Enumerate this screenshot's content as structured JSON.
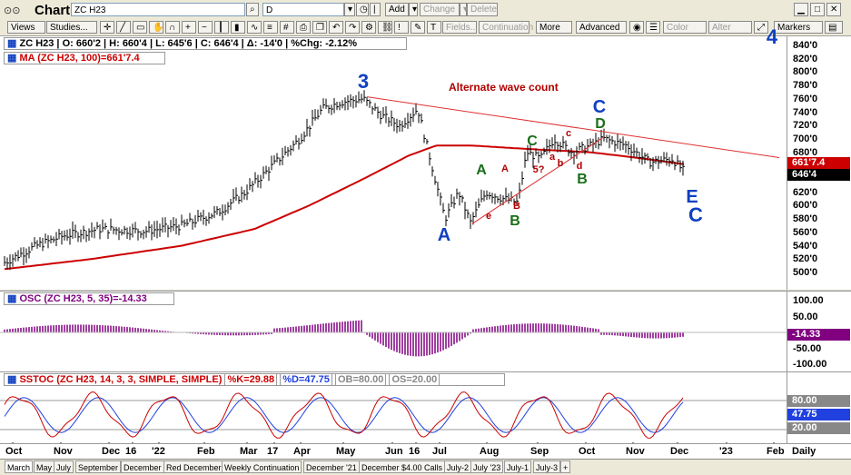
{
  "app": {
    "title": "Chart"
  },
  "titlebar": {
    "symbol_input": "ZC H23",
    "period_input": "D",
    "add_label": "Add",
    "change_label": "Change",
    "delete_label": "Delete"
  },
  "toolbar": {
    "views_label": "Views",
    "studies_label": "Studies...",
    "fields_label": "Fields...",
    "continuation_label": "Continuation",
    "more_label": "More",
    "advanced_label": "Advanced",
    "color_label": "Color",
    "alter_label": "Alter",
    "markers_label": "Markers"
  },
  "price_panel": {
    "symbol": "ZC H23",
    "open": "O: 660'2",
    "high": "H: 660'4",
    "low": "L: 645'6",
    "close": "C: 646'4",
    "delta": "Δ: -14'0",
    "pct": "%Chg: -2.12%",
    "ma_label": "MA (ZC H23, 100)=661'7.4",
    "annotation": "Alternate wave count",
    "y_ticks": [
      "840'0",
      "820'0",
      "800'0",
      "780'0",
      "760'0",
      "740'0",
      "720'0",
      "700'0",
      "680'0",
      "660'0",
      "640'0",
      "620'0",
      "600'0",
      "580'0",
      "560'0",
      "540'0",
      "520'0",
      "500'0"
    ],
    "ma_value": "661'7.4",
    "last_value": "646'4"
  },
  "osc_panel": {
    "label": "OSC (ZC H23, 5, 35)=-14.33",
    "y_ticks": [
      "100.00",
      "50.00",
      "-50.00",
      "-100.00"
    ],
    "last_value": "-14.33"
  },
  "stoch_panel": {
    "label": "SSTOC (ZC H23, 14, 3, 3, SIMPLE, SIMPLE)",
    "k": "%K=29.88",
    "d": "%D=47.75",
    "ob": "OB=80.00",
    "os": "OS=20.00",
    "v80": "80.00",
    "v4775": "47.75",
    "v20": "20.00"
  },
  "x_axis": {
    "labels": [
      "Oct",
      "Nov",
      "Dec",
      "16",
      "'22",
      "Feb",
      "Mar",
      "17",
      "Apr",
      "May",
      "Jun",
      "16",
      "Jul",
      "Aug",
      "Sep",
      "Oct",
      "Nov",
      "Dec",
      "'23",
      "Feb"
    ],
    "period": "Daily"
  },
  "tabs": [
    "March",
    "May",
    "July",
    "September",
    "December",
    "Red December",
    "Weekly Continuation",
    "December '21",
    "December $4.00 Calls",
    "July-2",
    "July '23",
    "July-1",
    "July-3",
    "+"
  ],
  "colors": {
    "ma": "#cc0000",
    "wave_blue": "#1040c0",
    "wave_green": "#1a6e1a",
    "wave_red": "#b00000",
    "osc": "#800080",
    "stoch_k": "#cc0000",
    "stoch_d": "#2040e0"
  },
  "chart_data": {
    "type": "line",
    "title": "ZC H23 Daily",
    "ylim": [
      500,
      840
    ],
    "x": [
      "Oct",
      "Nov",
      "Dec",
      "'22",
      "Feb",
      "Mar",
      "Apr",
      "May",
      "Jun",
      "Jul",
      "Aug",
      "Sep",
      "Oct",
      "Nov",
      "Dec"
    ],
    "series": [
      {
        "name": "ZC H23",
        "values": [
          515,
          545,
          565,
          565,
          585,
          640,
          735,
          760,
          715,
          600,
          620,
          680,
          690,
          690,
          646
        ]
      },
      {
        "name": "MA (ZC H23, 100)",
        "values": [
          505,
          525,
          540,
          550,
          565,
          590,
          640,
          680,
          690,
          690,
          685,
          680,
          675,
          665,
          662
        ]
      }
    ],
    "wave_labels": [
      "3",
      "A",
      "A",
      "B",
      "C",
      "C",
      "B",
      "D",
      "E",
      "C",
      "4",
      "5?",
      "a",
      "b",
      "c",
      "d",
      "e",
      "A",
      "B",
      "C"
    ],
    "oscillator": {
      "name": "OSC (ZC H23, 5, 35)",
      "ylim": [
        -100,
        100
      ],
      "last": -14.33
    },
    "stochastic": {
      "name": "SSTOC (ZC H23, 14, 3, 3)",
      "k": 29.88,
      "d": 47.75,
      "ob": 80,
      "os": 20
    }
  }
}
